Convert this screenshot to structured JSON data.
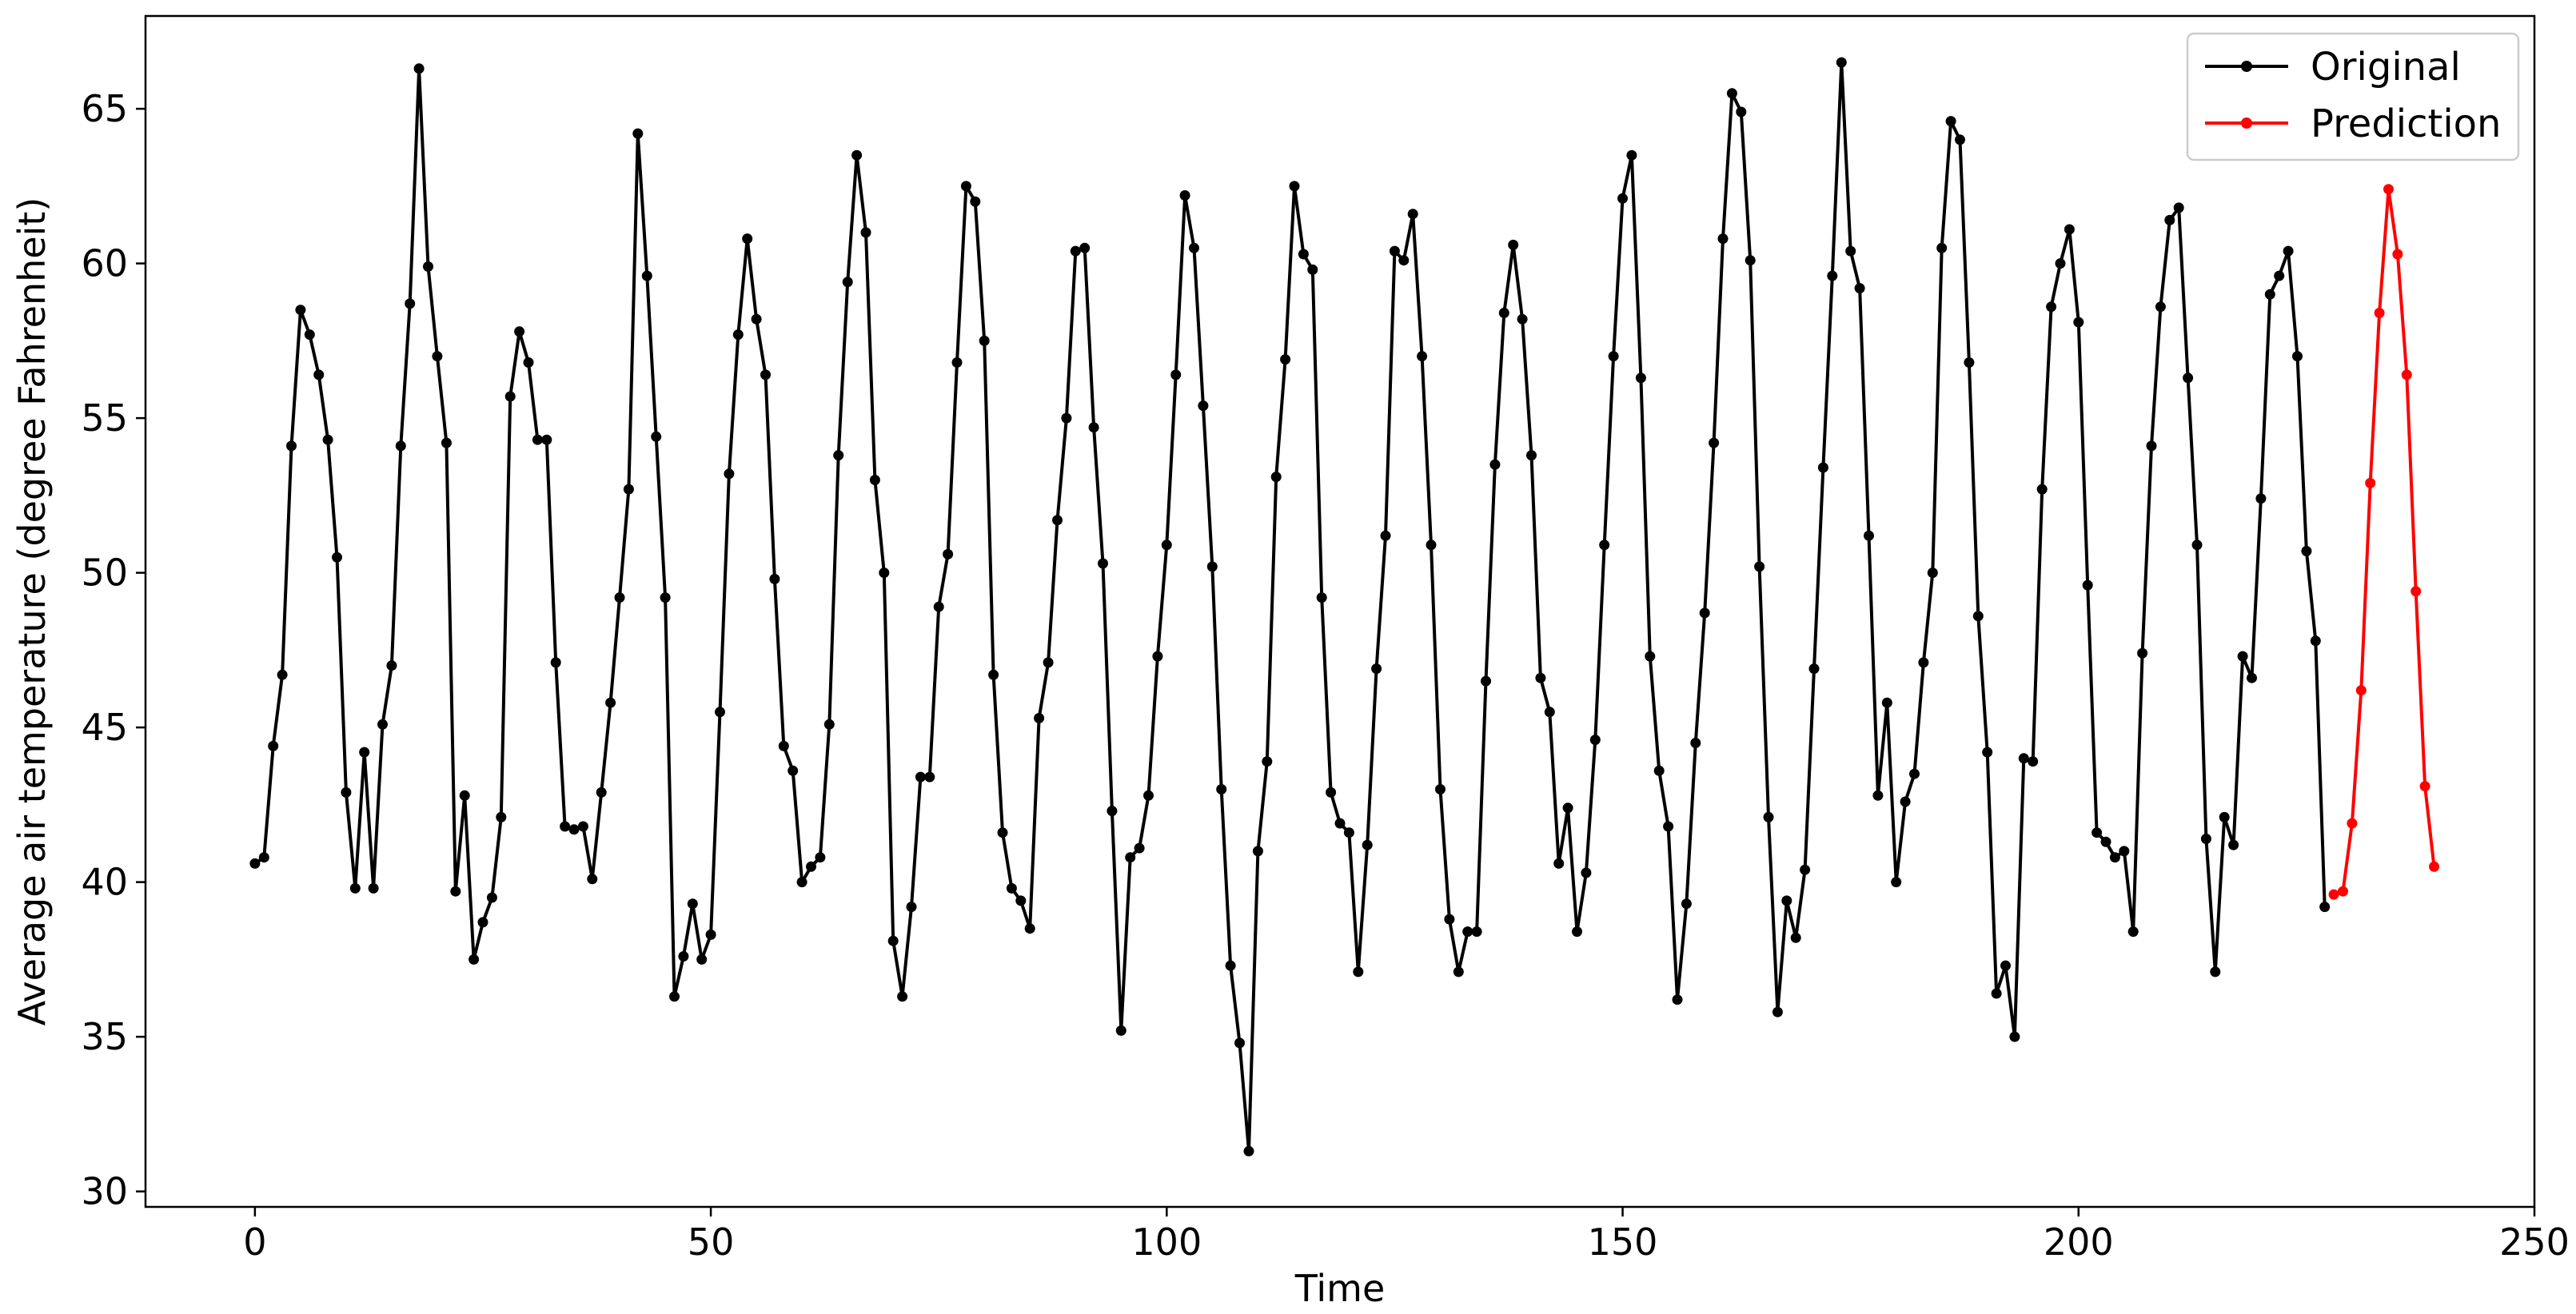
{
  "chart_data": {
    "type": "line",
    "title": "",
    "xlabel": "Time",
    "ylabel": "Average air temperature (degree Fahrenheit)",
    "xlim": [
      -12,
      250
    ],
    "ylim": [
      29.5,
      68
    ],
    "xticks": [
      0,
      50,
      100,
      150,
      200,
      250
    ],
    "yticks": [
      30,
      35,
      40,
      45,
      50,
      55,
      60,
      65
    ],
    "grid": false,
    "legend": "top-right",
    "series": [
      {
        "name": "Original",
        "color": "#000000",
        "x_start": 0,
        "values": [
          40.6,
          40.8,
          44.4,
          46.7,
          54.1,
          58.5,
          57.7,
          56.4,
          54.3,
          50.5,
          42.9,
          39.8,
          44.2,
          39.8,
          45.1,
          47.0,
          54.1,
          58.7,
          66.3,
          59.9,
          57.0,
          54.2,
          39.7,
          42.8,
          37.5,
          38.7,
          39.5,
          42.1,
          55.7,
          57.8,
          56.8,
          54.3,
          54.3,
          47.1,
          41.8,
          41.7,
          41.8,
          40.1,
          42.9,
          45.8,
          49.2,
          52.7,
          64.2,
          59.6,
          54.4,
          49.2,
          36.3,
          37.6,
          39.3,
          37.5,
          38.3,
          45.5,
          53.2,
          57.7,
          60.8,
          58.2,
          56.4,
          49.8,
          44.4,
          43.6,
          40.0,
          40.5,
          40.8,
          45.1,
          53.8,
          59.4,
          63.5,
          61.0,
          53.0,
          50.0,
          38.1,
          36.3,
          39.2,
          43.4,
          43.4,
          48.9,
          50.6,
          56.8,
          62.5,
          62.0,
          57.5,
          46.7,
          41.6,
          39.8,
          39.4,
          38.5,
          45.3,
          47.1,
          51.7,
          55.0,
          60.4,
          60.5,
          54.7,
          50.3,
          42.3,
          35.2,
          40.8,
          41.1,
          42.8,
          47.3,
          50.9,
          56.4,
          62.2,
          60.5,
          55.4,
          50.2,
          43.0,
          37.3,
          34.8,
          31.3,
          41.0,
          43.9,
          53.1,
          56.9,
          62.5,
          60.3,
          59.8,
          49.2,
          42.9,
          41.9,
          41.6,
          37.1,
          41.2,
          46.9,
          51.2,
          60.4,
          60.1,
          61.6,
          57.0,
          50.9,
          43.0,
          38.8,
          37.1,
          38.4,
          38.4,
          46.5,
          53.5,
          58.4,
          60.6,
          58.2,
          53.8,
          46.6,
          45.5,
          40.6,
          42.4,
          38.4,
          40.3,
          44.6,
          50.9,
          57.0,
          62.1,
          63.5,
          56.3,
          47.3,
          43.6,
          41.8,
          36.2,
          39.3,
          44.5,
          48.7,
          54.2,
          60.8,
          65.5,
          64.9,
          60.1,
          50.2,
          42.1,
          35.8,
          39.4,
          38.2,
          40.4,
          46.9,
          53.4,
          59.6,
          66.5,
          60.4,
          59.2,
          51.2,
          42.8,
          45.8,
          40.0,
          42.6,
          43.5,
          47.1,
          50.0,
          60.5,
          64.6,
          64.0,
          56.8,
          48.6,
          44.2,
          36.4,
          37.3,
          35.0,
          44.0,
          43.9,
          52.7,
          58.6,
          60.0,
          61.1,
          58.1,
          49.6,
          41.6,
          41.3,
          40.8,
          41.0,
          38.4,
          47.4,
          54.1,
          58.6,
          61.4,
          61.8,
          56.3,
          50.9,
          41.4,
          37.1,
          42.1,
          41.2,
          47.3,
          46.6,
          52.4,
          59.0,
          59.6,
          60.4,
          57.0,
          50.7,
          47.8,
          39.2
        ]
      },
      {
        "name": "Prediction",
        "color": "#ff0000",
        "x_start": 228,
        "values": [
          39.6,
          39.7,
          41.9,
          46.2,
          52.9,
          58.4,
          62.4,
          60.3,
          56.4,
          49.4,
          43.1,
          40.5
        ]
      }
    ]
  }
}
